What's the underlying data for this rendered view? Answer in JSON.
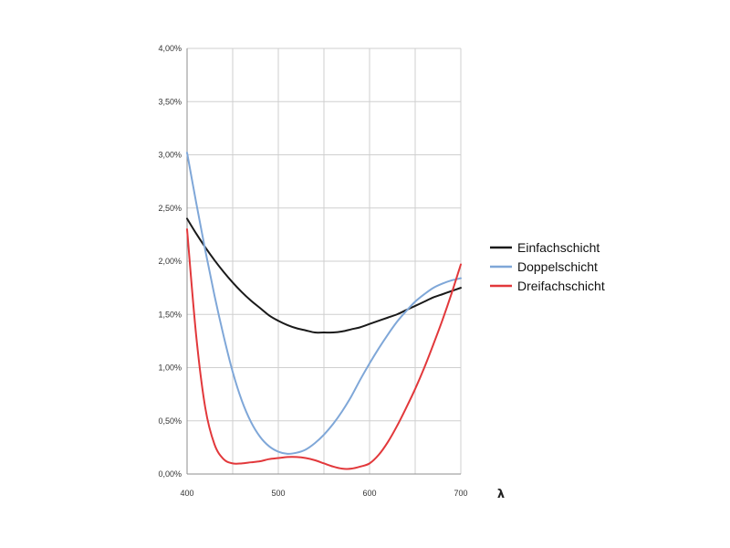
{
  "chart_data": {
    "type": "line",
    "xlabel": "λ",
    "ylabel": "",
    "xlim": [
      400,
      700
    ],
    "ylim": [
      0,
      4
    ],
    "x_ticks": [
      400,
      500,
      600,
      700
    ],
    "x_tick_labels": [
      "400",
      "500",
      "600",
      "700"
    ],
    "x_grid": [
      400,
      450,
      500,
      550,
      600,
      650,
      700
    ],
    "y_ticks": [
      0,
      0.5,
      1,
      1.5,
      2,
      2.5,
      3,
      3.5,
      4
    ],
    "y_tick_labels": [
      "0,00%",
      "0,50%",
      "1,00%",
      "1,50%",
      "2,00%",
      "2,50%",
      "3,00%",
      "3,50%",
      "4,00%"
    ],
    "grid": true,
    "legend_position": "right",
    "series": [
      {
        "name": "Einfachschicht",
        "color": "#1a1a1a",
        "x": [
          400,
          410,
          420,
          430,
          440,
          450,
          460,
          470,
          480,
          490,
          500,
          510,
          520,
          530,
          540,
          550,
          560,
          570,
          580,
          590,
          600,
          610,
          620,
          630,
          640,
          650,
          660,
          670,
          680,
          690,
          700
        ],
        "y": [
          2.4,
          2.26,
          2.13,
          2.01,
          1.9,
          1.8,
          1.71,
          1.63,
          1.56,
          1.49,
          1.44,
          1.4,
          1.37,
          1.35,
          1.33,
          1.33,
          1.33,
          1.34,
          1.36,
          1.38,
          1.41,
          1.44,
          1.47,
          1.5,
          1.54,
          1.58,
          1.62,
          1.66,
          1.69,
          1.72,
          1.75
        ]
      },
      {
        "name": "Doppelschicht",
        "color": "#7fa7d8",
        "x": [
          400,
          410,
          420,
          430,
          440,
          450,
          460,
          470,
          480,
          490,
          500,
          510,
          520,
          530,
          540,
          550,
          560,
          570,
          580,
          590,
          600,
          610,
          620,
          630,
          640,
          650,
          660,
          670,
          680,
          690,
          700
        ],
        "y": [
          3.02,
          2.55,
          2.1,
          1.68,
          1.3,
          0.96,
          0.69,
          0.49,
          0.35,
          0.26,
          0.21,
          0.19,
          0.2,
          0.23,
          0.29,
          0.37,
          0.47,
          0.59,
          0.73,
          0.89,
          1.04,
          1.18,
          1.31,
          1.43,
          1.53,
          1.62,
          1.69,
          1.75,
          1.79,
          1.82,
          1.84
        ]
      },
      {
        "name": "Dreifachschicht",
        "color": "#e2383b",
        "x": [
          400,
          410,
          420,
          430,
          440,
          450,
          460,
          470,
          480,
          490,
          500,
          510,
          520,
          530,
          540,
          550,
          560,
          570,
          580,
          590,
          600,
          610,
          620,
          630,
          640,
          650,
          660,
          670,
          680,
          690,
          700
        ],
        "y": [
          2.3,
          1.3,
          0.62,
          0.28,
          0.14,
          0.1,
          0.1,
          0.11,
          0.12,
          0.14,
          0.15,
          0.16,
          0.16,
          0.15,
          0.13,
          0.1,
          0.07,
          0.05,
          0.05,
          0.07,
          0.1,
          0.18,
          0.3,
          0.45,
          0.62,
          0.8,
          1.0,
          1.22,
          1.45,
          1.7,
          1.97
        ]
      }
    ]
  }
}
